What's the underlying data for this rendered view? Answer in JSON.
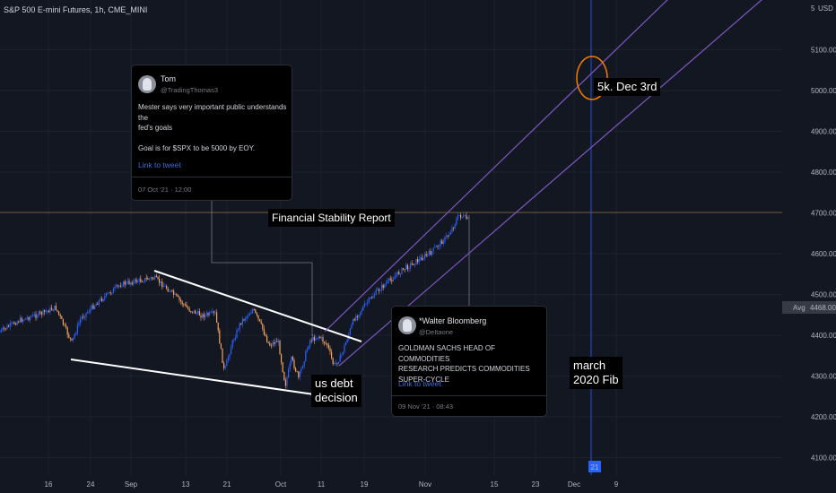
{
  "symbol": {
    "title": "S&P 500 E-mini Futures, 1h, CME_MINI"
  },
  "price_axis": {
    "currency": "USD",
    "ticks": [
      "5100.00",
      "5000.00",
      "4900.00",
      "4800.00",
      "4700.00",
      "4600.00",
      "4500.00",
      "4400.00",
      "4300.00",
      "4200.00",
      "4100.00"
    ],
    "top_label": "5",
    "avg_label": "Avg",
    "avg_value": "4468.00"
  },
  "time_axis": {
    "ticks": [
      "16",
      "24",
      "Sep",
      "13",
      "21",
      "Oct",
      "11",
      "19",
      "Nov",
      "15",
      "23",
      "Dec",
      "9"
    ],
    "highlight": "21"
  },
  "tweets": [
    {
      "name": "Tom",
      "handle": "@TradingThomas3",
      "text": "Mester says very important public understands the\nfed's goals\n\nGoal is for $SPX to be 5000 by EOY.",
      "link": "Link to tweet",
      "time": "07 Oct '21 · 12:00"
    },
    {
      "name": "*Walter Bloomberg",
      "handle": "@DeItaone",
      "text": "GOLDMAN SACHS HEAD OF COMMODITIES\nRESEARCH PREDICTS COMMODITIES SUPER-CYCLE",
      "link": "Link to tweet",
      "time": "09 Nov '21 · 08:43"
    }
  ],
  "callouts": {
    "financial_stability": "Financial Stability Report",
    "target": "5k. Dec 3rd",
    "debt": "us debt\ndecision",
    "fib": "march\n2020 Fib"
  },
  "colors": {
    "background": "#131722",
    "candle_up": "#2962ff",
    "candle_down": "#f7a35c",
    "channel": "#7e57c2",
    "wedge": "#ffffff",
    "horizontal_level": "#8a6d3b",
    "vertical_marker": "#2962ff",
    "target_circle": "#f57c00"
  }
}
